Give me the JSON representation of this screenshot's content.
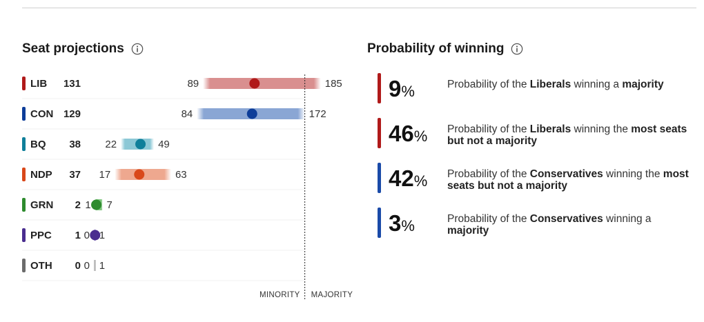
{
  "seat_projections": {
    "title": "Seat projections",
    "info_icon": "info-icon"
  },
  "probability": {
    "title": "Probability of winning",
    "info_icon": "info-icon",
    "items": [
      {
        "value": "9",
        "unit": "%",
        "party_color": "#b01a1a",
        "text_before": "Probability of the ",
        "party": "Liberals",
        "text_mid": " winning a ",
        "outcome": "majority"
      },
      {
        "value": "46",
        "unit": "%",
        "party_color": "#b01a1a",
        "text_before": "Probability of the ",
        "party": "Liberals",
        "text_mid": " winning the ",
        "outcome": "most seats but not a majority"
      },
      {
        "value": "42",
        "unit": "%",
        "party_color": "#1a4aa8",
        "text_before": "Probability of the ",
        "party": "Conservatives",
        "text_mid": " winning the ",
        "outcome": "most seats but not a majority"
      },
      {
        "value": "3",
        "unit": "%",
        "party_color": "#1a4aa8",
        "text_before": "Probability of the ",
        "party": "Conservatives",
        "text_mid": " winning a ",
        "outcome": "majority"
      }
    ]
  },
  "chart_data": {
    "type": "range-dot",
    "title": "Seat projections",
    "majority_threshold": 172,
    "xlim": [
      0,
      200
    ],
    "threshold_labels": {
      "left": "MINORITY",
      "right": "MAJORITY"
    },
    "parties": [
      {
        "code": "LIB",
        "seats": 131,
        "low": 89,
        "high": 185,
        "color": "#b01a1a",
        "band": "#d98f8f"
      },
      {
        "code": "CON",
        "seats": 129,
        "low": 84,
        "high": 172,
        "color": "#0d3d99",
        "band": "#8aa6d4"
      },
      {
        "code": "BQ",
        "seats": 38,
        "low": 22,
        "high": 49,
        "color": "#0f7f9a",
        "band": "#8cc8d6"
      },
      {
        "code": "NDP",
        "seats": 37,
        "low": 17,
        "high": 63,
        "color": "#d9481a",
        "band": "#eea88f"
      },
      {
        "code": "GRN",
        "seats": 2,
        "low": 1,
        "high": 7,
        "color": "#2e8b2e",
        "band": "#7ec67e"
      },
      {
        "code": "PPC",
        "seats": 1,
        "low": 0,
        "high": 1,
        "color": "#4a2d8f",
        "band": "#a89ad0"
      },
      {
        "code": "OTH",
        "seats": 0,
        "low": 0,
        "high": 1,
        "color": "#6b6b6b",
        "band": "#bdbdbd"
      }
    ]
  }
}
